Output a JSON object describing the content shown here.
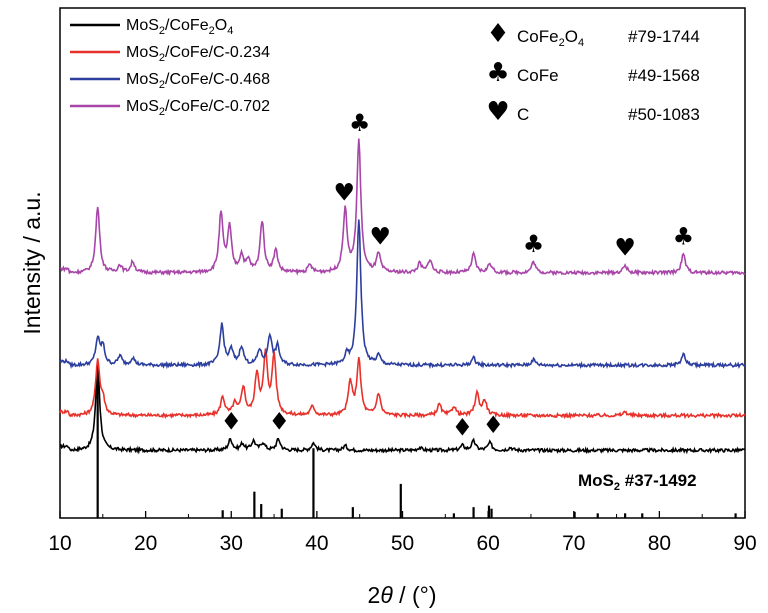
{
  "chart_data": {
    "type": "line",
    "xlabel": "2θ / (°)",
    "xlabel_parts": {
      "main": "2",
      "var": "θ",
      "unit": " / (°)"
    },
    "ylabel": "Intensity / a.u.",
    "xlim": [
      10,
      90
    ],
    "xticks": [
      10,
      20,
      30,
      40,
      50,
      60,
      70,
      80,
      90
    ],
    "grid": false,
    "legend_position": "top-left",
    "series": [
      {
        "name": "MoS2/CoFe2O4",
        "name_parts": [
          "MoS",
          "2",
          "/CoFe",
          "2",
          "O",
          "4"
        ],
        "color": "#000000",
        "baseline": 0.37,
        "peaks": [
          [
            14.4,
            0.48
          ],
          [
            29.9,
            0.06
          ],
          [
            31.3,
            0.035
          ],
          [
            32.6,
            0.05
          ],
          [
            33.7,
            0.04
          ],
          [
            35.5,
            0.06
          ],
          [
            39.6,
            0.04
          ],
          [
            43.3,
            0.025
          ],
          [
            52.0,
            0.015
          ],
          [
            57.0,
            0.025
          ],
          [
            58.3,
            0.05
          ],
          [
            60.2,
            0.04
          ],
          [
            62.6,
            0.015
          ]
        ]
      },
      {
        "name": "MoS2/CoFe/C-0.234",
        "name_parts": [
          "MoS",
          "2",
          "/CoFe/C-0.234"
        ],
        "color": "#e8312a",
        "baseline": 0.56,
        "peaks": [
          [
            14.4,
            0.3
          ],
          [
            15.0,
            0.08
          ],
          [
            29.0,
            0.1
          ],
          [
            30.4,
            0.06
          ],
          [
            31.4,
            0.15
          ],
          [
            33.0,
            0.22
          ],
          [
            34.0,
            0.32
          ],
          [
            35.0,
            0.32
          ],
          [
            39.5,
            0.05
          ],
          [
            43.9,
            0.18
          ],
          [
            44.9,
            0.3
          ],
          [
            47.2,
            0.12
          ],
          [
            54.3,
            0.06
          ],
          [
            56.0,
            0.05
          ],
          [
            58.7,
            0.12
          ],
          [
            59.6,
            0.08
          ],
          [
            76.0,
            0.02
          ]
        ]
      },
      {
        "name": "MoS2/CoFe/C-0.468",
        "name_parts": [
          "MoS",
          "2",
          "/CoFe/C-0.468"
        ],
        "color": "#2c3e9e",
        "baseline": 0.835,
        "peaks": [
          [
            14.4,
            0.14
          ],
          [
            15.0,
            0.1
          ],
          [
            17.0,
            0.05
          ],
          [
            18.5,
            0.04
          ],
          [
            28.9,
            0.22
          ],
          [
            30.0,
            0.08
          ],
          [
            31.2,
            0.1
          ],
          [
            33.3,
            0.08
          ],
          [
            34.5,
            0.16
          ],
          [
            35.4,
            0.1
          ],
          [
            43.5,
            0.05
          ],
          [
            44.9,
            0.8
          ],
          [
            47.2,
            0.05
          ],
          [
            58.3,
            0.04
          ],
          [
            65.3,
            0.03
          ],
          [
            82.8,
            0.06
          ]
        ]
      },
      {
        "name": "MoS2/CoFe/C-0.702",
        "name_parts": [
          "MoS",
          "2",
          "/CoFe/C-0.702"
        ],
        "color": "#a845a8",
        "baseline": 1.34,
        "peaks": [
          [
            14.4,
            0.36
          ],
          [
            17.0,
            0.04
          ],
          [
            18.5,
            0.06
          ],
          [
            28.8,
            0.32
          ],
          [
            29.8,
            0.24
          ],
          [
            31.2,
            0.09
          ],
          [
            32.0,
            0.06
          ],
          [
            33.6,
            0.28
          ],
          [
            35.2,
            0.12
          ],
          [
            39.2,
            0.04
          ],
          [
            43.3,
            0.34
          ],
          [
            44.9,
            0.72
          ],
          [
            47.2,
            0.1
          ],
          [
            52.0,
            0.05
          ],
          [
            53.2,
            0.07
          ],
          [
            58.3,
            0.1
          ],
          [
            60.2,
            0.05
          ],
          [
            65.3,
            0.06
          ],
          [
            76.0,
            0.04
          ],
          [
            82.8,
            0.1
          ]
        ]
      }
    ],
    "reference_pattern": {
      "label": "MoS2 #37-1492",
      "label_parts": [
        "MoS",
        "2",
        " #37-1492"
      ],
      "sticks": [
        [
          14.4,
          1.0
        ],
        [
          29.0,
          0.05
        ],
        [
          32.7,
          0.17
        ],
        [
          33.5,
          0.09
        ],
        [
          35.9,
          0.06
        ],
        [
          39.6,
          0.45
        ],
        [
          44.2,
          0.07
        ],
        [
          49.8,
          0.22
        ],
        [
          56.0,
          0.03
        ],
        [
          58.3,
          0.07
        ],
        [
          60.1,
          0.08
        ],
        [
          60.4,
          0.06
        ],
        [
          70.1,
          0.04
        ],
        [
          72.8,
          0.03
        ],
        [
          76.0,
          0.03
        ],
        [
          78.0,
          0.03
        ],
        [
          88.9,
          0.03
        ]
      ]
    },
    "phase_legend": [
      {
        "symbol": "♦",
        "symbol_name": "diamond",
        "phase": "CoFe2O4",
        "phase_parts": [
          "CoFe",
          "2",
          "O",
          "4"
        ],
        "card": "#79-1744"
      },
      {
        "symbol": "♣",
        "symbol_name": "club",
        "phase": "CoFe",
        "phase_parts": [
          "CoFe"
        ],
        "card": "#49-1568"
      },
      {
        "symbol": "♥",
        "symbol_name": "heart",
        "phase": "C",
        "phase_parts": [
          "C"
        ],
        "card": "#50-1083"
      }
    ],
    "annotations": [
      {
        "symbol": "♦",
        "x": 30.0,
        "series": 0
      },
      {
        "symbol": "♦",
        "x": 35.6,
        "series": 0
      },
      {
        "symbol": "♦",
        "x": 57.0,
        "series": 0
      },
      {
        "symbol": "♦",
        "x": 60.6,
        "series": 0
      },
      {
        "symbol": "♥",
        "x": 43.2,
        "series": 3
      },
      {
        "symbol": "♣",
        "x": 45.0,
        "series": 3
      },
      {
        "symbol": "♥",
        "x": 47.4,
        "series": 3
      },
      {
        "symbol": "♣",
        "x": 65.3,
        "series": 3
      },
      {
        "symbol": "♥",
        "x": 76.0,
        "series": 3
      },
      {
        "symbol": "♣",
        "x": 82.8,
        "series": 3
      }
    ]
  }
}
